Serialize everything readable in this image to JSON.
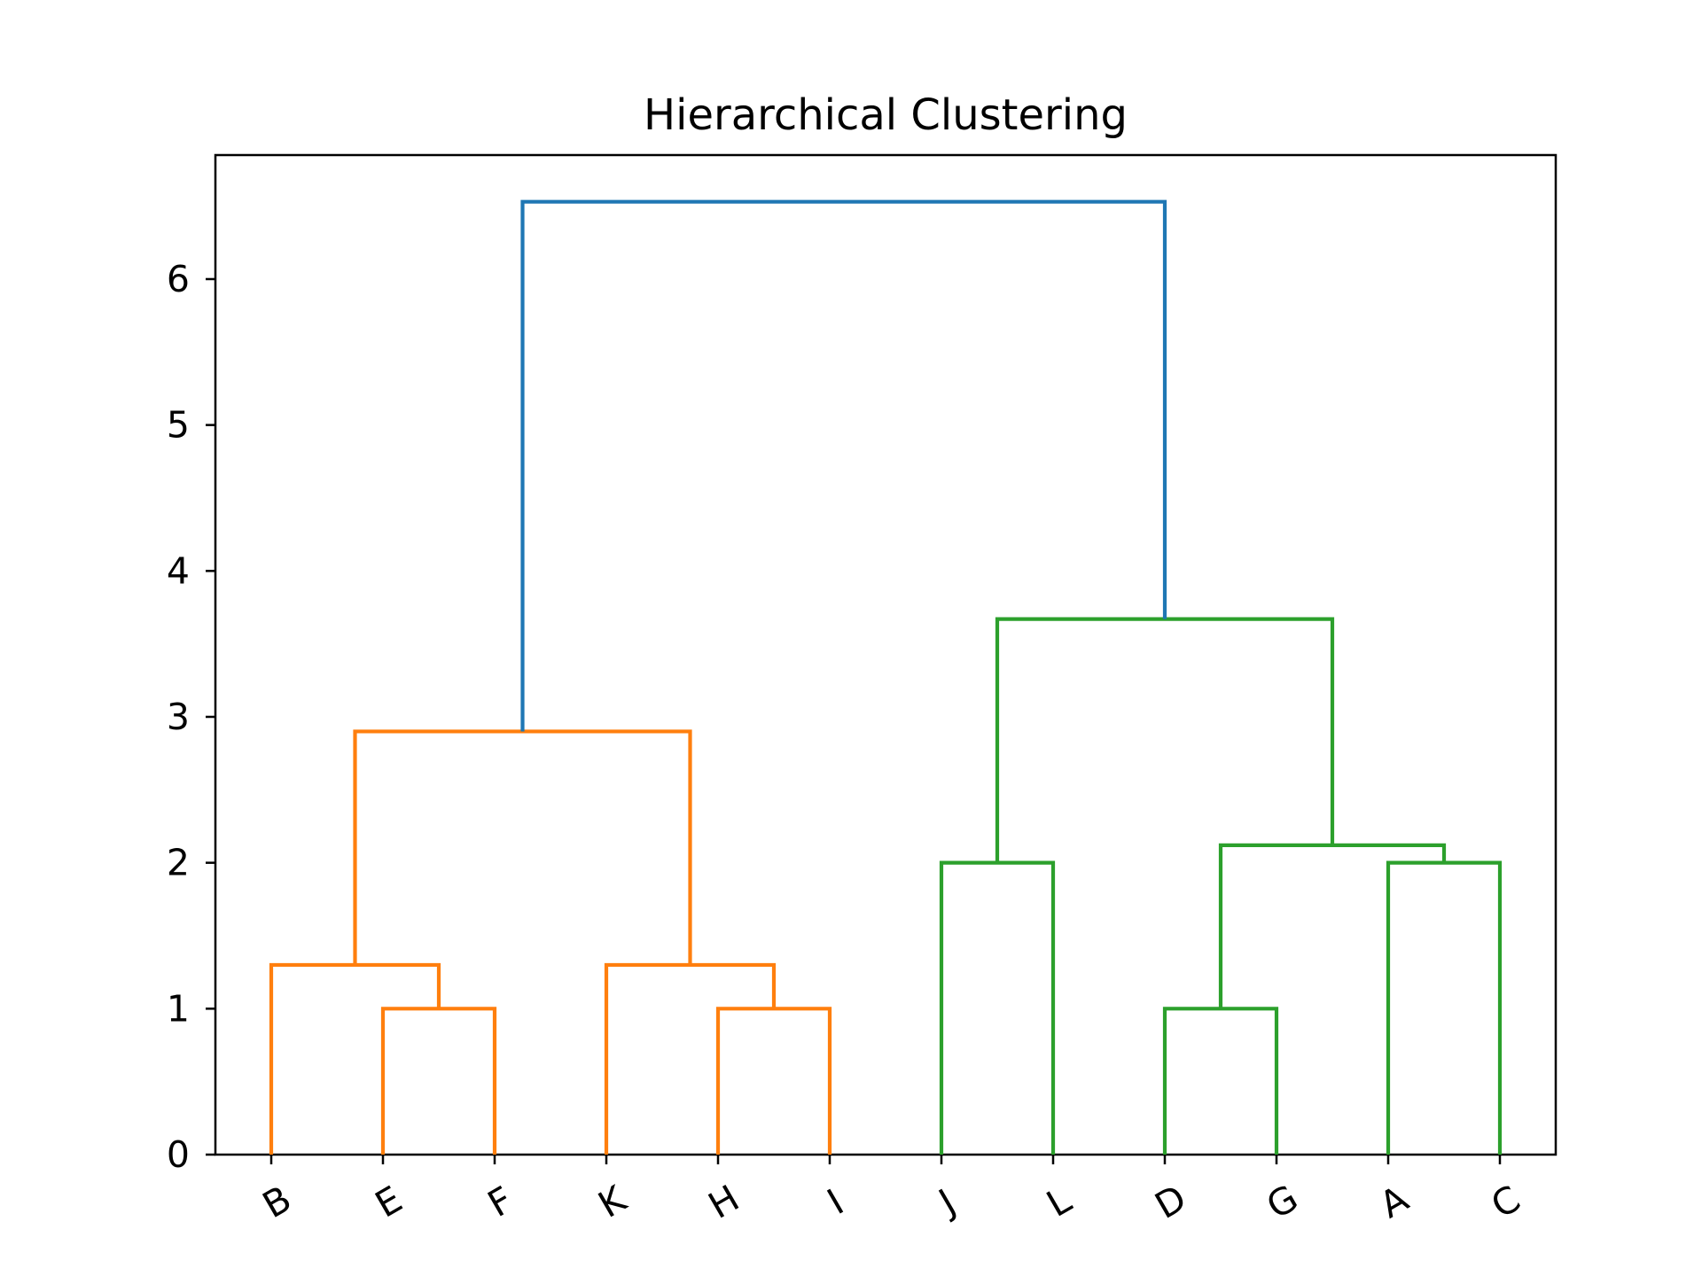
{
  "chart_data": {
    "type": "dendrogram",
    "title": "Hierarchical Clustering",
    "xlabel": "",
    "ylabel": "",
    "ylim": [
      0,
      6.85
    ],
    "yticks": [
      0,
      1,
      2,
      3,
      4,
      5,
      6
    ],
    "leaves": [
      "B",
      "E",
      "F",
      "K",
      "H",
      "I",
      "J",
      "L",
      "D",
      "G",
      "A",
      "C"
    ],
    "colors": {
      "cluster_1": "#ff7f0e",
      "cluster_2": "#2ca02c",
      "root": "#1f77b4",
      "axes": "#000000"
    },
    "merges": [
      {
        "left": "E",
        "right": "F",
        "height": 1.0,
        "color": "cluster_1"
      },
      {
        "left": "B",
        "right": "E+F",
        "height": 1.3,
        "color": "cluster_1"
      },
      {
        "left": "H",
        "right": "I",
        "height": 1.0,
        "color": "cluster_1"
      },
      {
        "left": "K",
        "right": "H+I",
        "height": 1.3,
        "color": "cluster_1"
      },
      {
        "left": "B+E+F",
        "right": "K+H+I",
        "height": 2.9,
        "color": "cluster_1"
      },
      {
        "left": "J",
        "right": "L",
        "height": 2.0,
        "color": "cluster_2"
      },
      {
        "left": "D",
        "right": "G",
        "height": 1.0,
        "color": "cluster_2"
      },
      {
        "left": "A",
        "right": "C",
        "height": 2.0,
        "color": "cluster_2"
      },
      {
        "left": "D+G",
        "right": "A+C",
        "height": 2.12,
        "color": "cluster_2"
      },
      {
        "left": "J+L",
        "right": "D+G+A+C",
        "height": 3.67,
        "color": "cluster_2"
      },
      {
        "left": "B+E+F+K+H+I",
        "right": "J+L+D+G+A+C",
        "height": 6.53,
        "color": "root"
      }
    ]
  }
}
